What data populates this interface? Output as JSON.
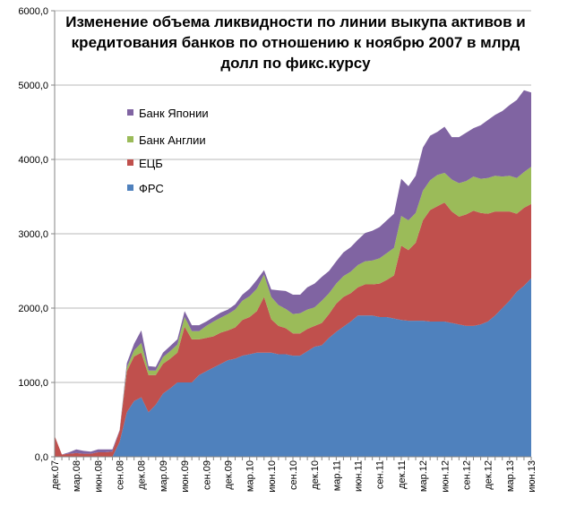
{
  "chart_data": {
    "type": "area",
    "stacked": true,
    "title": [
      "Изменение объема ликвидности по линии выкупа активов и",
      "кредитования банков по отношению к ноябрю 2007 в млрд",
      "долл по фикс.курсу"
    ],
    "ylim": [
      0,
      6000
    ],
    "y_ticks": [
      "0,0",
      "1000,0",
      "2000,0",
      "3000,0",
      "4000,0",
      "5000,0",
      "6000,0"
    ],
    "x_tick_labels": [
      "дек.07",
      "мар.08",
      "июн.08",
      "сен.08",
      "дек.08",
      "мар.09",
      "июн.09",
      "сен.09",
      "дек.09",
      "мар.10",
      "июн.10",
      "сен.10",
      "дек.10",
      "мар.11",
      "июн.11",
      "сен.11",
      "дек.11",
      "мар.12",
      "июн.12",
      "сен.12",
      "дек.12",
      "мар.13",
      "июн.13"
    ],
    "grid": true,
    "legend_position": "top-left",
    "x": [
      "дек.07",
      "янв.08",
      "фев.08",
      "мар.08",
      "апр.08",
      "май.08",
      "июн.08",
      "июл.08",
      "авг.08",
      "сен.08",
      "окт.08",
      "ноя.08",
      "дек.08",
      "янв.09",
      "фев.09",
      "мар.09",
      "апр.09",
      "май.09",
      "июн.09",
      "июл.09",
      "авг.09",
      "сен.09",
      "окт.09",
      "ноя.09",
      "дек.09",
      "янв.10",
      "фев.10",
      "мар.10",
      "апр.10",
      "май.10",
      "июн.10",
      "июл.10",
      "авг.10",
      "сен.10",
      "окт.10",
      "ноя.10",
      "дек.10",
      "янв.11",
      "фев.11",
      "мар.11",
      "апр.11",
      "май.11",
      "июн.11",
      "июл.11",
      "авг.11",
      "сен.11",
      "окт.11",
      "ноя.11",
      "дек.11",
      "янв.12",
      "фев.12",
      "мар.12",
      "апр.12",
      "май.12",
      "июн.12",
      "июл.12",
      "авг.12",
      "сен.12",
      "окт.12",
      "ноя.12",
      "дек.12",
      "янв.13",
      "фев.13",
      "мар.13",
      "апр.13",
      "май.13",
      "июн.13"
    ],
    "series": [
      {
        "name": "ФРС",
        "color": "#4f81bd",
        "values": [
          0,
          0,
          0,
          0,
          0,
          0,
          0,
          0,
          0,
          200,
          600,
          750,
          800,
          600,
          700,
          850,
          920,
          1000,
          1000,
          1000,
          1100,
          1150,
          1200,
          1250,
          1300,
          1320,
          1360,
          1380,
          1400,
          1400,
          1400,
          1380,
          1380,
          1360,
          1360,
          1420,
          1480,
          1500,
          1600,
          1680,
          1750,
          1820,
          1900,
          1900,
          1900,
          1880,
          1880,
          1860,
          1840,
          1830,
          1830,
          1830,
          1820,
          1820,
          1820,
          1800,
          1780,
          1760,
          1760,
          1780,
          1820,
          1900,
          2000,
          2100,
          2220,
          2300,
          2400
        ]
      },
      {
        "name": "ЕЦБ",
        "color": "#c0504d",
        "values": [
          280,
          30,
          40,
          50,
          40,
          40,
          60,
          60,
          70,
          150,
          550,
          600,
          600,
          500,
          400,
          400,
          400,
          400,
          750,
          580,
          480,
          450,
          420,
          420,
          400,
          420,
          480,
          500,
          560,
          750,
          450,
          380,
          350,
          300,
          300,
          300,
          280,
          300,
          320,
          380,
          400,
          380,
          380,
          420,
          420,
          450,
          500,
          580,
          1000,
          950,
          1050,
          1350,
          1500,
          1550,
          1600,
          1500,
          1450,
          1500,
          1550,
          1500,
          1450,
          1400,
          1300,
          1200,
          1050,
          1050,
          1000
        ]
      },
      {
        "name": "Банк Англии",
        "color": "#9bbb59",
        "values": [
          0,
          0,
          0,
          0,
          0,
          0,
          0,
          0,
          0,
          0,
          50,
          80,
          130,
          60,
          60,
          90,
          100,
          110,
          130,
          110,
          110,
          160,
          200,
          200,
          220,
          240,
          260,
          280,
          300,
          300,
          300,
          280,
          260,
          260,
          270,
          260,
          250,
          300,
          280,
          270,
          280,
          290,
          300,
          310,
          320,
          340,
          360,
          370,
          400,
          400,
          400,
          400,
          400,
          420,
          400,
          430,
          450,
          450,
          460,
          460,
          480,
          480,
          470,
          480,
          480,
          480,
          500
        ]
      },
      {
        "name": "Банк Японии",
        "color": "#8064a2",
        "values": [
          0,
          0,
          20,
          50,
          40,
          30,
          40,
          40,
          30,
          10,
          60,
          90,
          170,
          60,
          50,
          60,
          70,
          70,
          80,
          80,
          80,
          60,
          60,
          70,
          60,
          70,
          80,
          100,
          120,
          60,
          100,
          200,
          240,
          260,
          250,
          300,
          320,
          320,
          300,
          300,
          320,
          330,
          340,
          380,
          400,
          420,
          440,
          460,
          500,
          460,
          500,
          580,
          600,
          580,
          620,
          570,
          620,
          650,
          650,
          720,
          780,
          820,
          880,
          950,
          1050,
          1100,
          1000
        ]
      }
    ]
  },
  "legend": [
    {
      "label": "Банк Японии",
      "color": "#8064a2"
    },
    {
      "label": "Банк Англии",
      "color": "#9bbb59"
    },
    {
      "label": "ЕЦБ",
      "color": "#c0504d"
    },
    {
      "label": "ФРС",
      "color": "#4f81bd"
    }
  ]
}
